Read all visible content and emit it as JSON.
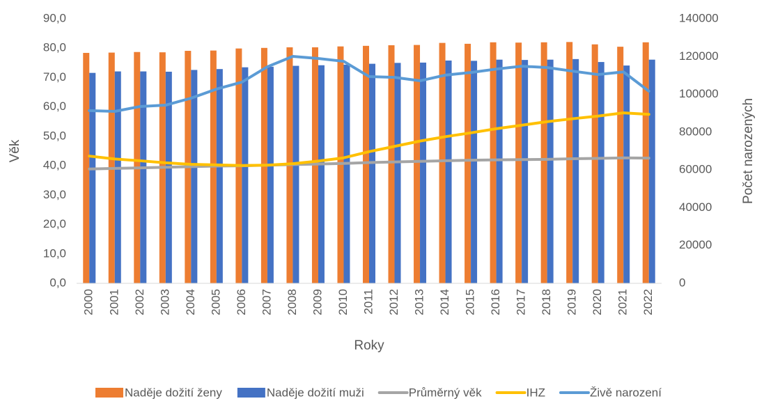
{
  "chart_data": {
    "type": "combo",
    "x_label": "Roky",
    "y_label": "Věk",
    "y2_label": "Počet narozených",
    "categories": [
      "2000",
      "2001",
      "2002",
      "2003",
      "2004",
      "2005",
      "2006",
      "2007",
      "2008",
      "2009",
      "2010",
      "2011",
      "2012",
      "2013",
      "2014",
      "2015",
      "2016",
      "2017",
      "2018",
      "2019",
      "2020",
      "2021",
      "2022"
    ],
    "ylim": [
      0,
      90
    ],
    "yticks": [
      {
        "value": 0,
        "label": "0,0"
      },
      {
        "value": 10,
        "label": "10,0"
      },
      {
        "value": 20,
        "label": "20,0"
      },
      {
        "value": 30,
        "label": "30,0"
      },
      {
        "value": 40,
        "label": "40,0"
      },
      {
        "value": 50,
        "label": "50,0"
      },
      {
        "value": 60,
        "label": "60,0"
      },
      {
        "value": 70,
        "label": "70,0"
      },
      {
        "value": 80,
        "label": "80,0"
      },
      {
        "value": 90,
        "label": "90,0"
      }
    ],
    "y2lim": [
      0,
      140000
    ],
    "y2ticks": [
      0,
      20000,
      40000,
      60000,
      80000,
      100000,
      120000,
      140000
    ],
    "series": [
      {
        "name": "Naděje dožití ženy",
        "type": "bar",
        "color": "#ed7d31",
        "values": [
          78.4,
          78.5,
          78.7,
          78.6,
          79.1,
          79.2,
          79.9,
          80.1,
          80.3,
          80.3,
          80.6,
          80.8,
          81.0,
          81.1,
          81.8,
          81.5,
          82.0,
          81.9,
          82.0,
          82.1,
          81.3,
          80.5,
          82.0
        ]
      },
      {
        "name": "Naděje dožití muži",
        "type": "bar",
        "color": "#4472c4",
        "values": [
          71.6,
          72.1,
          72.1,
          72.0,
          72.6,
          72.9,
          73.5,
          73.7,
          74.0,
          74.2,
          74.4,
          74.7,
          75.0,
          75.1,
          75.8,
          75.7,
          76.1,
          76.0,
          76.1,
          76.3,
          75.3,
          74.1,
          76.1
        ]
      },
      {
        "name": "Průměrný věk",
        "type": "line",
        "color": "#a5a5a5",
        "values": [
          38.9,
          39.1,
          39.3,
          39.5,
          39.7,
          39.9,
          40.0,
          40.2,
          40.4,
          40.6,
          40.8,
          41.1,
          41.3,
          41.5,
          41.7,
          41.9,
          42.0,
          42.1,
          42.2,
          42.4,
          42.5,
          42.7,
          42.6
        ]
      },
      {
        "name": "IHZ",
        "type": "line",
        "color": "#ffc000",
        "values": [
          43.3,
          42.3,
          41.7,
          41.0,
          40.5,
          40.3,
          40.1,
          40.2,
          40.7,
          41.6,
          42.7,
          44.8,
          46.6,
          48.4,
          49.9,
          51.2,
          52.6,
          53.8,
          55.0,
          56.0,
          56.9,
          58.0,
          57.5
        ]
      },
      {
        "name": "Živě narození",
        "type": "line",
        "axis": "y2",
        "color": "#5b9bd5",
        "values": [
          91400,
          91000,
          93600,
          94300,
          98000,
          102800,
          106500,
          114600,
          120100,
          119000,
          117500,
          109400,
          109000,
          107200,
          110200,
          111600,
          113400,
          114900,
          114200,
          112300,
          110500,
          111900,
          101700
        ]
      }
    ]
  }
}
